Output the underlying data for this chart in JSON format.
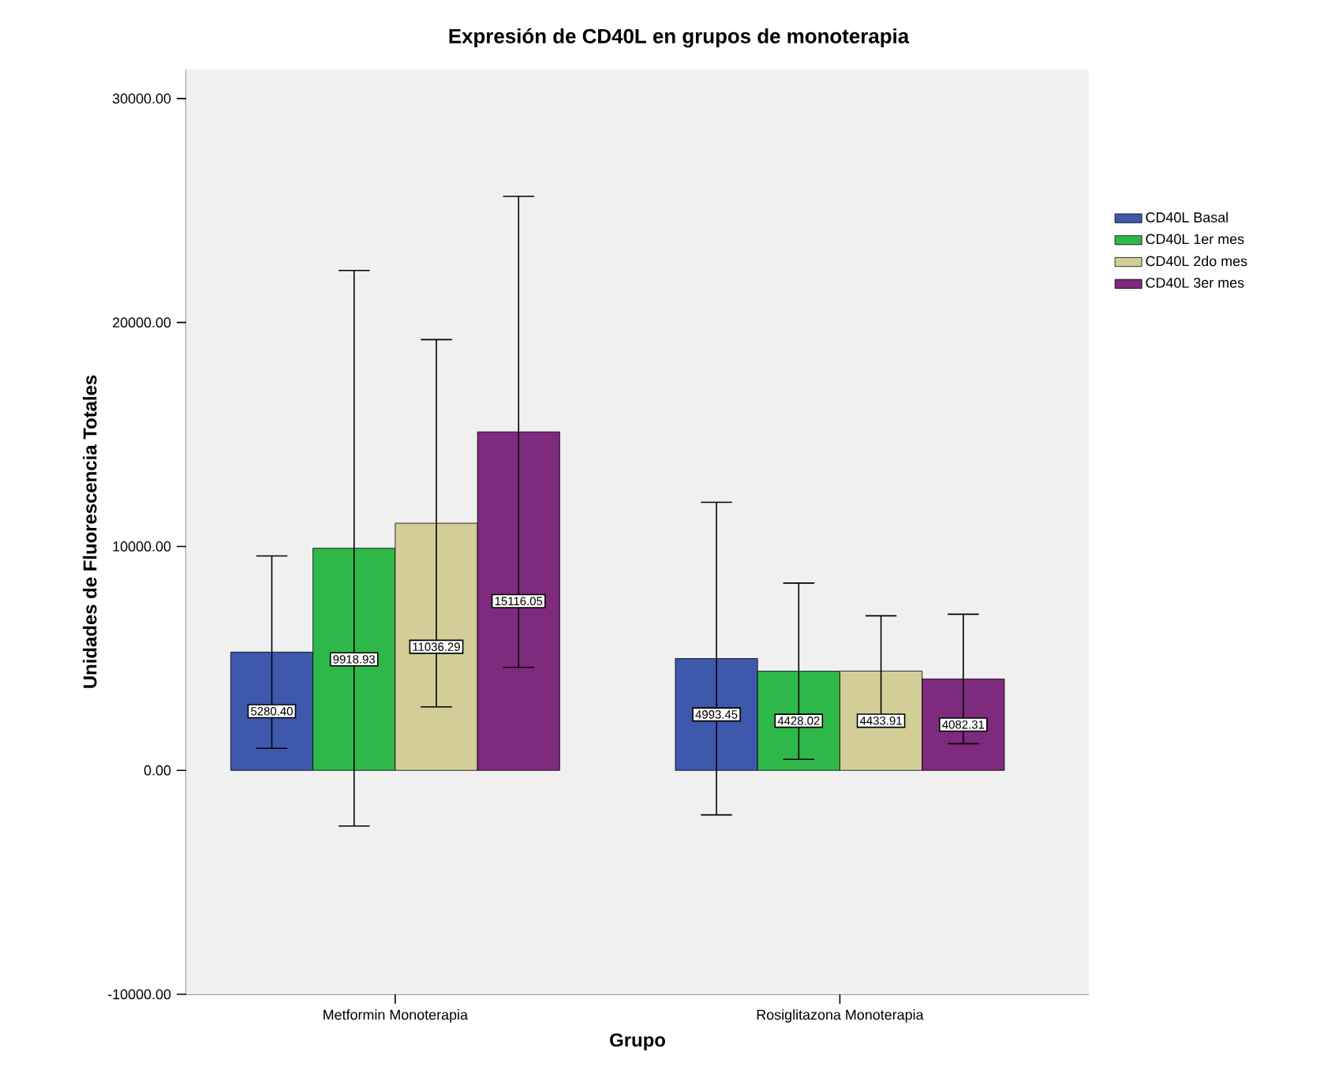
{
  "chart_data": {
    "type": "bar",
    "title": "Expresión de CD40L en grupos de monoterapia",
    "xlabel": "Grupo",
    "ylabel": "Unidades de Fluorescencia Totales",
    "categories": [
      "Metformin Monoterapia",
      "Rosiglitazona Monoterapia"
    ],
    "series": [
      {
        "name": "CD40L Basal",
        "color": "#3e58ac",
        "values": [
          5280.4,
          4993.45
        ],
        "value_labels": [
          "5280.40",
          "4993.45"
        ],
        "errors": [
          [
            983,
            9577
          ],
          [
            -1986,
            11972
          ]
        ]
      },
      {
        "name": "CD40L 1er mes",
        "color": "#2fb84a",
        "values": [
          9918.93,
          4428.02
        ],
        "value_labels": [
          "9918.93",
          "4428.02"
        ],
        "errors": [
          [
            -2487,
            22324
          ],
          [
            493,
            8363
          ]
        ]
      },
      {
        "name": "CD40L 2do mes",
        "color": "#d3ce97",
        "values": [
          11036.29,
          4433.91
        ],
        "value_labels": [
          "11036.29",
          "4433.91"
        ],
        "errors": [
          [
            2836,
            19236
          ],
          [
            1967,
            6901
          ]
        ]
      },
      {
        "name": "CD40L 3er mes",
        "color": "#7e2a7e",
        "values": [
          15116.05,
          4082.31
        ],
        "value_labels": [
          "15116.05",
          "4082.31"
        ],
        "errors": [
          [
            4598,
            25634
          ],
          [
            1192,
            6972
          ]
        ]
      }
    ],
    "ylim": [
      -10000,
      31300
    ],
    "yticks": [
      {
        "value": -10000,
        "label": "-10000.00"
      },
      {
        "value": 0,
        "label": "0.00"
      },
      {
        "value": 10000,
        "label": "10000.00"
      },
      {
        "value": 20000,
        "label": "20000.00"
      },
      {
        "value": 30000,
        "label": "30000.00"
      }
    ],
    "grid": false,
    "legend": "right"
  }
}
